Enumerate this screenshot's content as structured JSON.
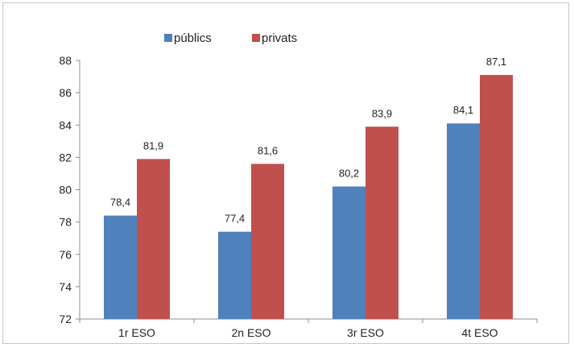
{
  "chart_data": {
    "type": "bar",
    "categories": [
      "1r ESO",
      "2n ESO",
      "3r ESO",
      "4t ESO"
    ],
    "series": [
      {
        "name": "públics",
        "values": [
          78.4,
          77.4,
          80.2,
          84.1
        ],
        "labels": [
          "78,4",
          "77,4",
          "80,2",
          "84,1"
        ],
        "color": "#4f81bd"
      },
      {
        "name": "privats",
        "values": [
          81.9,
          81.6,
          83.9,
          87.1
        ],
        "labels": [
          "81,9",
          "81,6",
          "83,9",
          "87,1"
        ],
        "color": "#c0504d"
      }
    ],
    "ylim": [
      72,
      88
    ],
    "yticks": [
      72,
      74,
      76,
      78,
      80,
      82,
      84,
      86,
      88
    ],
    "grid": false,
    "legend": "top-left"
  }
}
